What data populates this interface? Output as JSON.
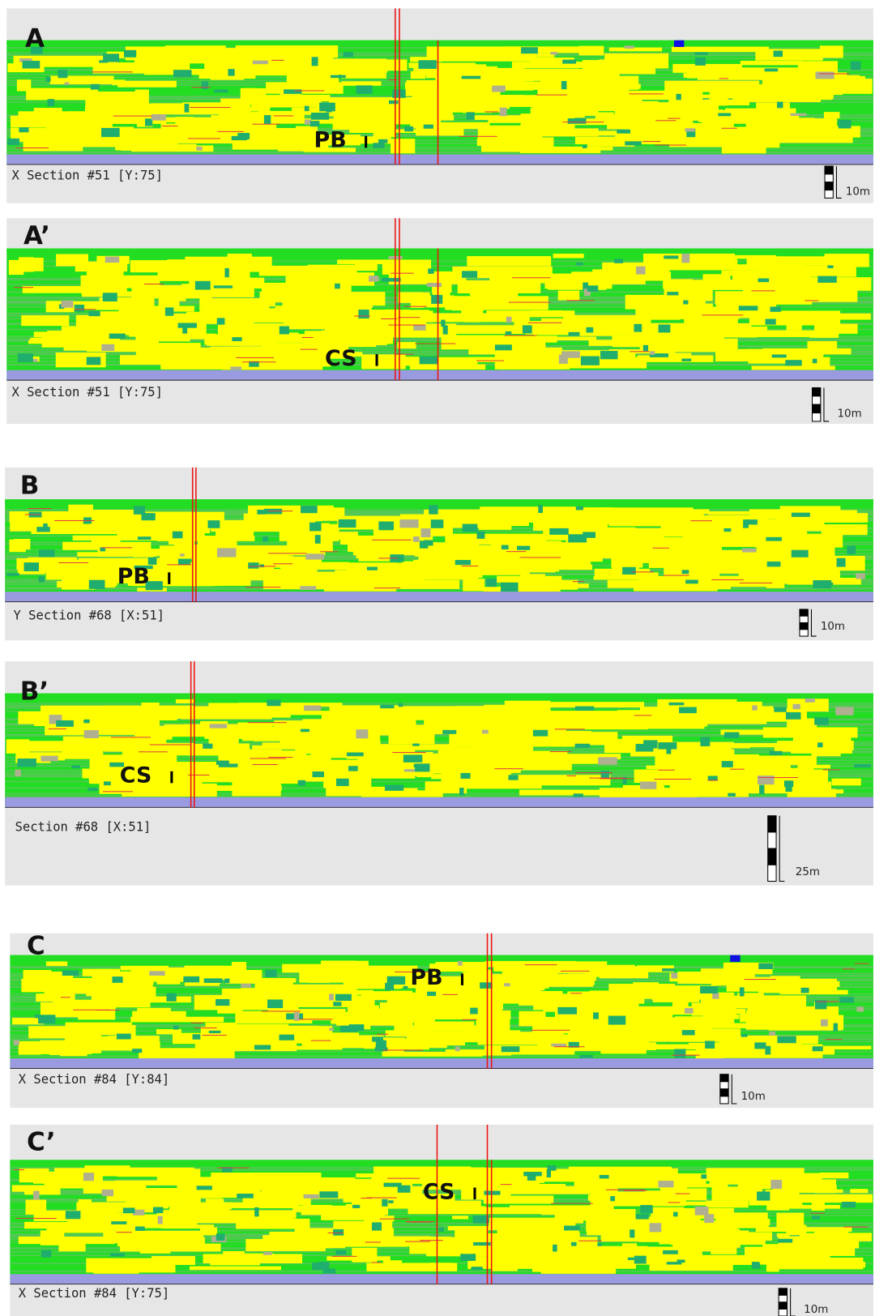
{
  "panels": [
    {
      "label": "A",
      "caption": "X Section #51 [Y:75]",
      "scale": "10m",
      "marker": "PB"
    },
    {
      "label": "A’",
      "caption": "X Section #51 [Y:75]",
      "scale": "10m",
      "marker": "CS"
    },
    {
      "label": "B",
      "caption": "Y Section #68 [X:51]",
      "scale": "10m",
      "marker": "PB"
    },
    {
      "label": "B’",
      "caption": "Section #68 [X:51]",
      "scale": "25m",
      "marker": "CS"
    },
    {
      "label": "C",
      "caption": "X Section #84 [Y:84]",
      "scale": "10m",
      "marker": "PB"
    },
    {
      "label": "C’",
      "caption": "X Section #84 [Y:75]",
      "scale": "10m",
      "marker": "CS"
    }
  ]
}
